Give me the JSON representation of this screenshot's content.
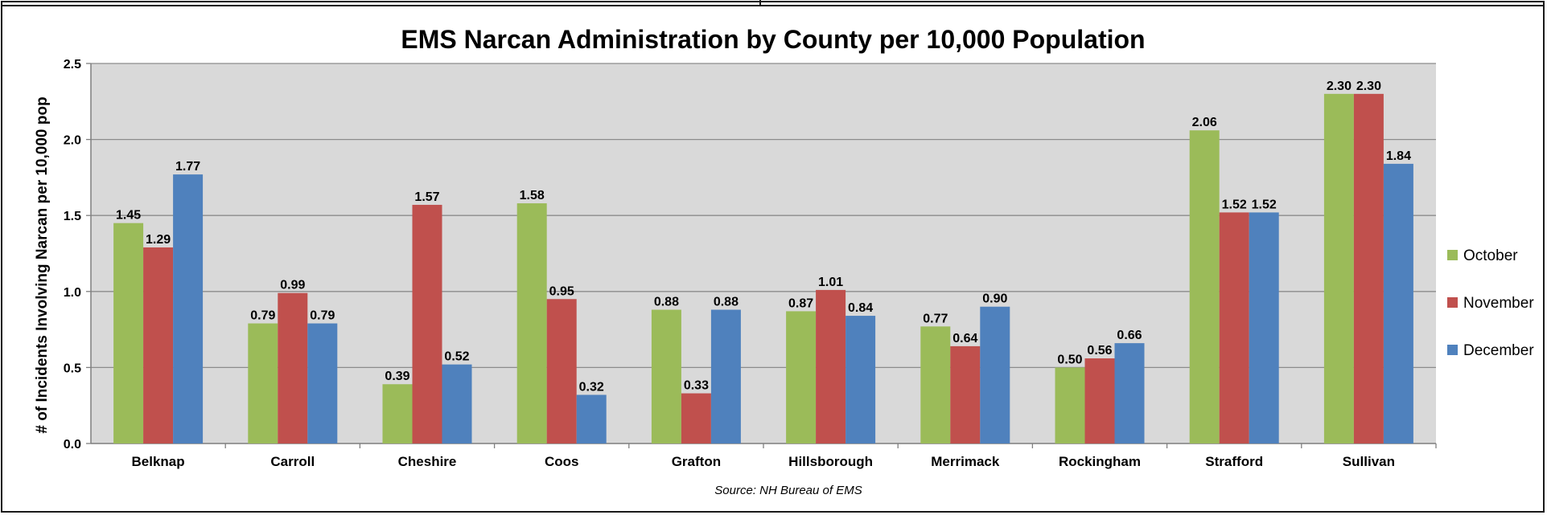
{
  "chart_data": {
    "type": "bar",
    "title": "EMS Narcan Administration by County per 10,000 Population",
    "xlabel": "",
    "ylabel": "# of Incidents Involving Narcan per 10,000 pop",
    "source": "Source: NH Bureau of EMS",
    "ylim": [
      0,
      2.5
    ],
    "yticks": [
      "0.0",
      "0.5",
      "1.0",
      "1.5",
      "2.0",
      "2.5"
    ],
    "grid": true,
    "legend_position": "right",
    "categories": [
      "Belknap",
      "Carroll",
      "Cheshire",
      "Coos",
      "Grafton",
      "Hillsborough",
      "Merrimack",
      "Rockingham",
      "Strafford",
      "Sullivan"
    ],
    "series": [
      {
        "name": "October",
        "color": "#9bbb59",
        "values": [
          1.45,
          0.79,
          0.39,
          1.58,
          0.88,
          0.87,
          0.77,
          0.5,
          2.06,
          2.3
        ]
      },
      {
        "name": "November",
        "color": "#c0504d",
        "values": [
          1.29,
          0.99,
          1.57,
          0.95,
          0.33,
          1.01,
          0.64,
          0.56,
          1.52,
          2.3
        ]
      },
      {
        "name": "December",
        "color": "#4f81bd",
        "values": [
          1.77,
          0.79,
          0.52,
          0.32,
          0.88,
          0.84,
          0.9,
          0.66,
          1.52,
          1.84
        ]
      }
    ],
    "plot_background": "#d9d9d9",
    "gridline_color": "#8c8c8c"
  }
}
